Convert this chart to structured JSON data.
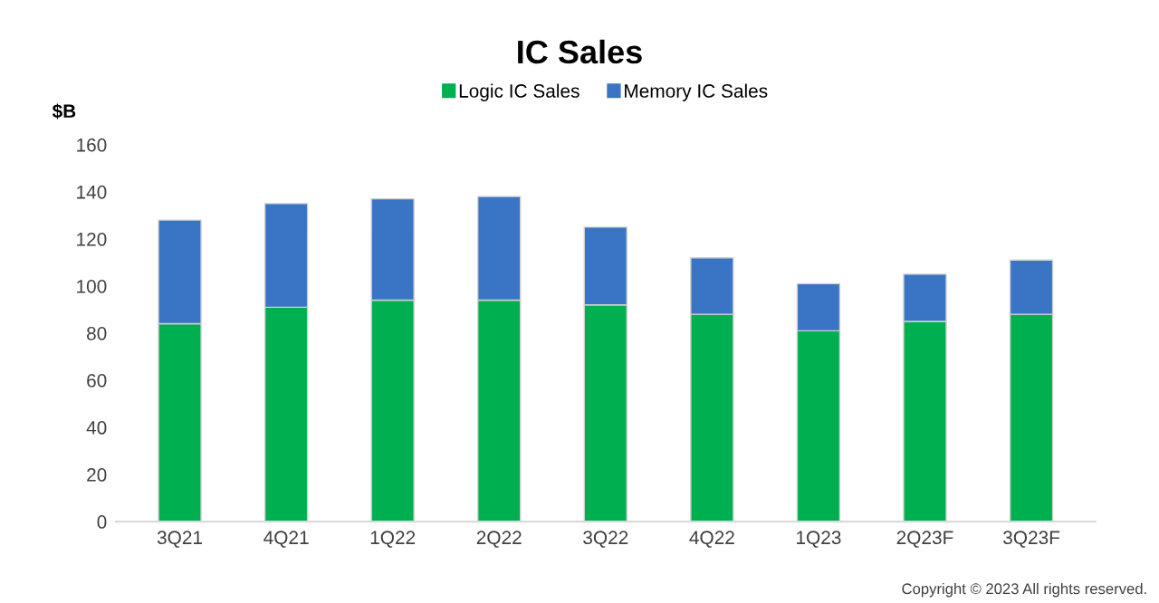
{
  "chart_data": {
    "type": "bar",
    "stacked": true,
    "title": "IC Sales",
    "ylabel": "$B",
    "categories": [
      "3Q21",
      "4Q21",
      "1Q22",
      "2Q22",
      "3Q22",
      "4Q22",
      "1Q23",
      "2Q23F",
      "3Q23F"
    ],
    "series": [
      {
        "name": "Logic IC Sales",
        "color": "#00b050",
        "values": [
          84,
          91,
          94,
          94,
          92,
          88,
          81,
          85,
          88
        ]
      },
      {
        "name": "Memory IC Sales",
        "color": "#3a74c4",
        "values": [
          44,
          44,
          43,
          44,
          33,
          24,
          20,
          20,
          23
        ]
      }
    ],
    "ylim": [
      0,
      160
    ],
    "yticks": [
      0,
      20,
      40,
      60,
      80,
      100,
      120,
      140,
      160
    ],
    "grid": false,
    "legend": "top",
    "annotations": [
      "Copyright © 2023 All rights reserved."
    ]
  }
}
